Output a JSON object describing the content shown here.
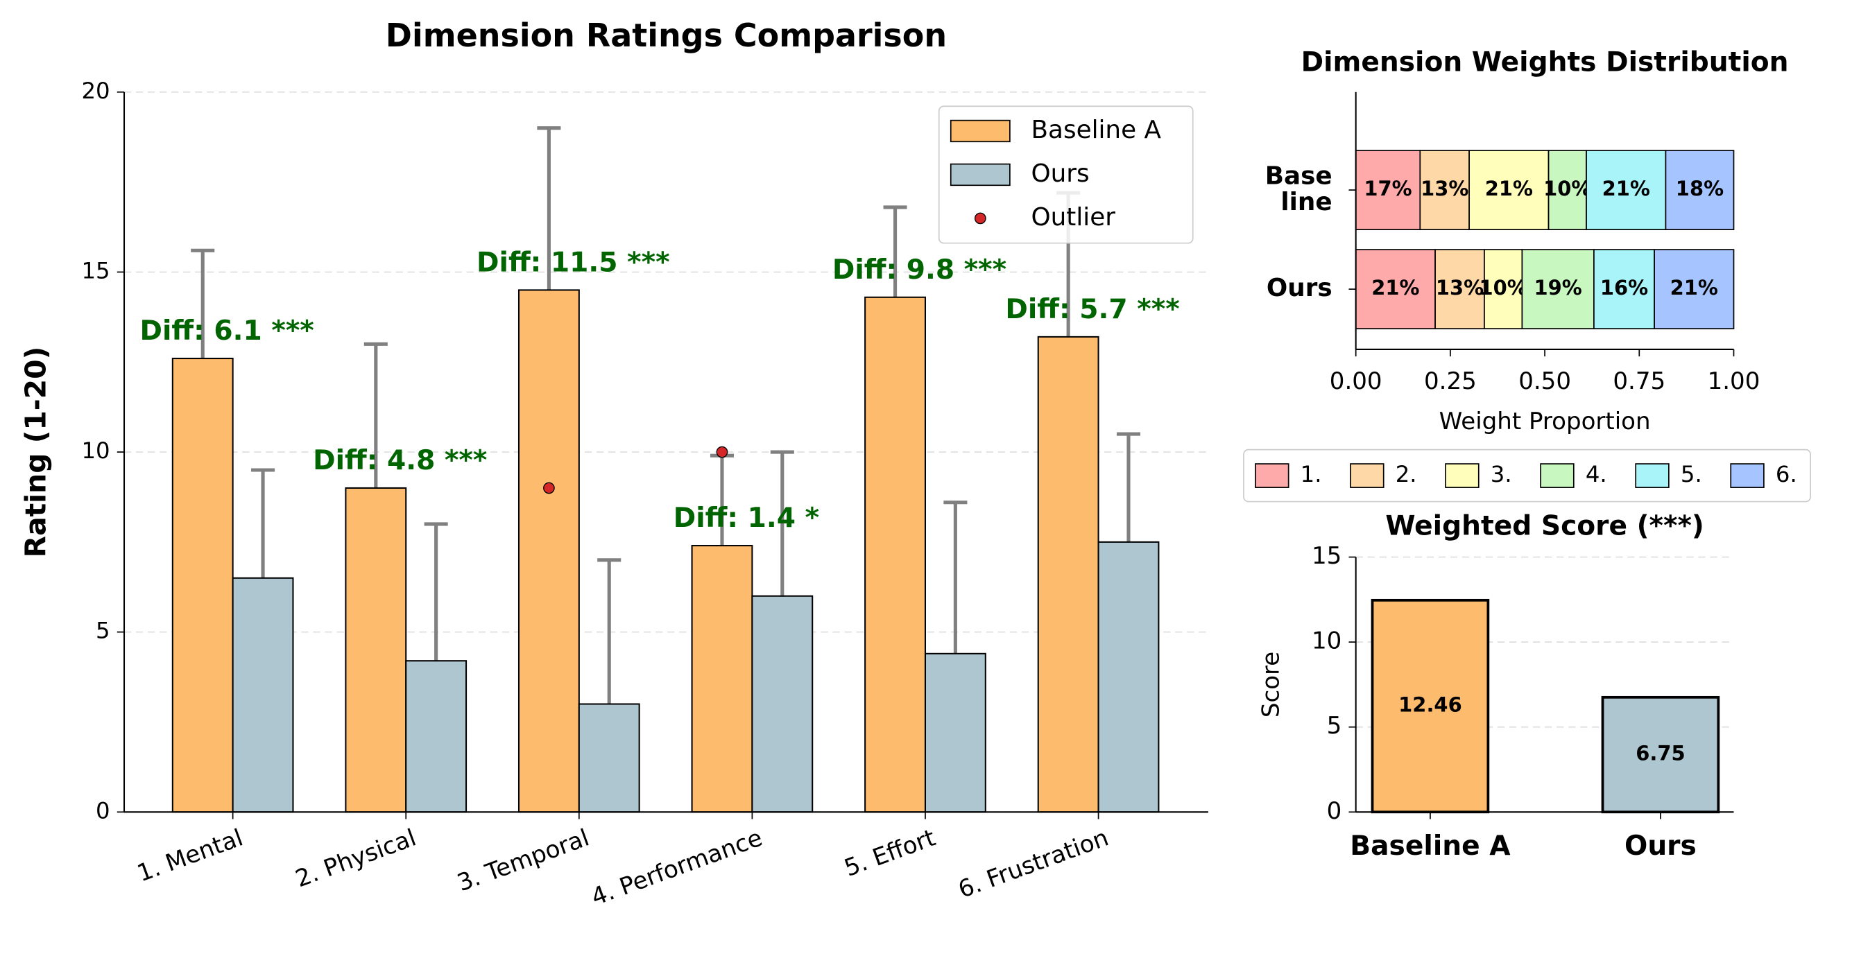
{
  "chart_data": [
    {
      "type": "grouped_bar",
      "title": "Dimension Ratings Comparison",
      "ylabel": "Rating (1-20)",
      "categories": [
        "1. Mental",
        "2. Physical",
        "3. Temporal",
        "4. Performance",
        "5. Effort",
        "6. Frustration"
      ],
      "series": [
        {
          "name": "Baseline A",
          "color": "#fdbb6e",
          "values": [
            12.6,
            9.0,
            14.5,
            7.4,
            14.3,
            13.2
          ],
          "errors": [
            3.0,
            4.0,
            4.5,
            2.5,
            2.5,
            4.0
          ]
        },
        {
          "name": "Ours",
          "color": "#aec6cf",
          "values": [
            6.5,
            4.2,
            3.0,
            6.0,
            4.4,
            7.5
          ],
          "errors": [
            3.0,
            3.8,
            4.0,
            4.0,
            4.2,
            3.0
          ]
        }
      ],
      "outliers": {
        "name": "Outlier",
        "color": "#d62728",
        "points": [
          {
            "category": 2,
            "value": 9.0
          },
          {
            "category": 3,
            "value": 10.0
          }
        ]
      },
      "annotations": [
        "Diff: 6.1 ***",
        "Diff: 4.8 ***",
        "Diff: 11.5 ***",
        "Diff: 1.4 *",
        "Diff: 9.8 ***",
        "Diff: 5.7 ***"
      ],
      "ylim": [
        0,
        20
      ],
      "yticks": [
        0,
        5,
        10,
        15,
        20
      ],
      "grid": true,
      "legend": "upper right"
    },
    {
      "type": "stacked_barh",
      "title": "Dimension Weights Distribution",
      "xlabel": "Weight Proportion",
      "categories": [
        "Base\nline",
        "Ours"
      ],
      "series": [
        {
          "name": "1.",
          "color": "#ffaaaa",
          "values": [
            0.17,
            0.21
          ],
          "value_labels": [
            "17%",
            "21%"
          ]
        },
        {
          "name": "2.",
          "color": "#ffd8a8",
          "values": [
            0.13,
            0.13
          ],
          "value_labels": [
            "13%",
            "13%"
          ]
        },
        {
          "name": "3.",
          "color": "#ffffbb",
          "values": [
            0.21,
            0.1
          ],
          "value_labels": [
            "21%",
            "10%"
          ]
        },
        {
          "name": "4.",
          "color": "#c8f7c0",
          "values": [
            0.1,
            0.19
          ],
          "value_labels": [
            "10%",
            "19%"
          ]
        },
        {
          "name": "5.",
          "color": "#a8f4f8",
          "values": [
            0.21,
            0.16
          ],
          "value_labels": [
            "21%",
            "16%"
          ]
        },
        {
          "name": "6.",
          "color": "#a6c4ff",
          "values": [
            0.18,
            0.21
          ],
          "value_labels": [
            "18%",
            "21%"
          ]
        }
      ],
      "xlim": [
        0,
        1
      ],
      "xticks": [
        {
          "value": 0,
          "label": "0.00"
        },
        {
          "value": 0.25,
          "label": "0.25"
        },
        {
          "value": 0.5,
          "label": "0.50"
        },
        {
          "value": 0.75,
          "label": "0.75"
        },
        {
          "value": 1,
          "label": "1.00"
        }
      ],
      "legend": "lower center"
    },
    {
      "type": "bar",
      "title": "Weighted Score (***)",
      "ylabel": "Score",
      "categories": [
        "Baseline A",
        "Ours"
      ],
      "values": [
        12.46,
        6.75
      ],
      "colors": [
        "#fdbb6e",
        "#aec6cf"
      ],
      "ylim": [
        0,
        15
      ],
      "yticks": [
        0,
        5,
        10,
        15
      ],
      "grid": true
    }
  ]
}
